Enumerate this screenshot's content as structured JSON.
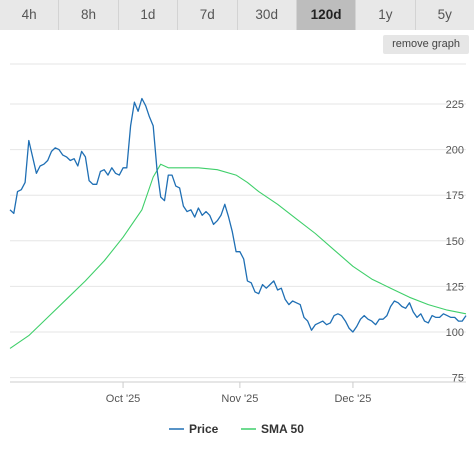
{
  "range_tabs": [
    {
      "label": "4h",
      "active": false
    },
    {
      "label": "8h",
      "active": false
    },
    {
      "label": "1d",
      "active": false
    },
    {
      "label": "7d",
      "active": false
    },
    {
      "label": "30d",
      "active": false
    },
    {
      "label": "120d",
      "active": true
    },
    {
      "label": "1y",
      "active": false
    },
    {
      "label": "5y",
      "active": false
    }
  ],
  "remove_graph_label": "remove graph",
  "chart_data": {
    "type": "line",
    "x_start": "2025-09-01",
    "x_end": "2025-12-31",
    "x_ticks": [
      {
        "label": "Oct '25",
        "date": "2025-10-01"
      },
      {
        "label": "Nov '25",
        "date": "2025-11-01"
      },
      {
        "label": "Dec '25",
        "date": "2025-12-01"
      }
    ],
    "y_ticks": [
      75,
      100,
      125,
      150,
      175,
      200,
      225
    ],
    "ylim": [
      70,
      245
    ],
    "y_axis_side": "right",
    "grid": true,
    "legend_position": "bottom-center",
    "series": [
      {
        "name": "Price",
        "color": "#1f6fb4",
        "points": [
          [
            "2025-09-01",
            167
          ],
          [
            "2025-09-02",
            165
          ],
          [
            "2025-09-03",
            177
          ],
          [
            "2025-09-04",
            178
          ],
          [
            "2025-09-05",
            182
          ],
          [
            "2025-09-06",
            205
          ],
          [
            "2025-09-07",
            196
          ],
          [
            "2025-09-08",
            187
          ],
          [
            "2025-09-09",
            191
          ],
          [
            "2025-09-10",
            192
          ],
          [
            "2025-09-11",
            194
          ],
          [
            "2025-09-12",
            199
          ],
          [
            "2025-09-13",
            201
          ],
          [
            "2025-09-14",
            200
          ],
          [
            "2025-09-15",
            197
          ],
          [
            "2025-09-16",
            196
          ],
          [
            "2025-09-17",
            194
          ],
          [
            "2025-09-18",
            195
          ],
          [
            "2025-09-19",
            191
          ],
          [
            "2025-09-20",
            199
          ],
          [
            "2025-09-21",
            196
          ],
          [
            "2025-09-22",
            183
          ],
          [
            "2025-09-23",
            181
          ],
          [
            "2025-09-24",
            181
          ],
          [
            "2025-09-25",
            188
          ],
          [
            "2025-09-26",
            189
          ],
          [
            "2025-09-27",
            186
          ],
          [
            "2025-09-28",
            190
          ],
          [
            "2025-09-29",
            187
          ],
          [
            "2025-09-30",
            186
          ],
          [
            "2025-10-01",
            190
          ],
          [
            "2025-10-02",
            190
          ],
          [
            "2025-10-03",
            213
          ],
          [
            "2025-10-04",
            226
          ],
          [
            "2025-10-05",
            221
          ],
          [
            "2025-10-06",
            228
          ],
          [
            "2025-10-07",
            224
          ],
          [
            "2025-10-08",
            218
          ],
          [
            "2025-10-09",
            213
          ],
          [
            "2025-10-10",
            189
          ],
          [
            "2025-10-11",
            174
          ],
          [
            "2025-10-12",
            172
          ],
          [
            "2025-10-13",
            186
          ],
          [
            "2025-10-14",
            186
          ],
          [
            "2025-10-15",
            180
          ],
          [
            "2025-10-16",
            179
          ],
          [
            "2025-10-17",
            169
          ],
          [
            "2025-10-18",
            166
          ],
          [
            "2025-10-19",
            167
          ],
          [
            "2025-10-20",
            163
          ],
          [
            "2025-10-21",
            168
          ],
          [
            "2025-10-22",
            164
          ],
          [
            "2025-10-23",
            166
          ],
          [
            "2025-10-24",
            164
          ],
          [
            "2025-10-25",
            159
          ],
          [
            "2025-10-26",
            161
          ],
          [
            "2025-10-27",
            164
          ],
          [
            "2025-10-28",
            170
          ],
          [
            "2025-10-29",
            163
          ],
          [
            "2025-10-30",
            155
          ],
          [
            "2025-10-31",
            144
          ],
          [
            "2025-11-01",
            144
          ],
          [
            "2025-11-02",
            140
          ],
          [
            "2025-11-03",
            128
          ],
          [
            "2025-11-04",
            127
          ],
          [
            "2025-11-05",
            122
          ],
          [
            "2025-11-06",
            121
          ],
          [
            "2025-11-07",
            126
          ],
          [
            "2025-11-08",
            124
          ],
          [
            "2025-11-09",
            126
          ],
          [
            "2025-11-10",
            128
          ],
          [
            "2025-11-11",
            123
          ],
          [
            "2025-11-12",
            124
          ],
          [
            "2025-11-13",
            118
          ],
          [
            "2025-11-14",
            115
          ],
          [
            "2025-11-15",
            117
          ],
          [
            "2025-11-16",
            116
          ],
          [
            "2025-11-17",
            115
          ],
          [
            "2025-11-18",
            108
          ],
          [
            "2025-11-19",
            106
          ],
          [
            "2025-11-20",
            101
          ],
          [
            "2025-11-21",
            104
          ],
          [
            "2025-11-22",
            105
          ],
          [
            "2025-11-23",
            106
          ],
          [
            "2025-11-24",
            104
          ],
          [
            "2025-11-25",
            105
          ],
          [
            "2025-11-26",
            109
          ],
          [
            "2025-11-27",
            110
          ],
          [
            "2025-11-28",
            109
          ],
          [
            "2025-11-29",
            106
          ],
          [
            "2025-11-30",
            102
          ],
          [
            "2025-12-01",
            100
          ],
          [
            "2025-12-02",
            103
          ],
          [
            "2025-12-03",
            107
          ],
          [
            "2025-12-04",
            109
          ],
          [
            "2025-12-05",
            107
          ],
          [
            "2025-12-06",
            106
          ],
          [
            "2025-12-07",
            104
          ],
          [
            "2025-12-08",
            107
          ],
          [
            "2025-12-09",
            107
          ],
          [
            "2025-12-10",
            109
          ],
          [
            "2025-12-11",
            114
          ],
          [
            "2025-12-12",
            117
          ],
          [
            "2025-12-13",
            116
          ],
          [
            "2025-12-14",
            114
          ],
          [
            "2025-12-15",
            113
          ],
          [
            "2025-12-16",
            116
          ],
          [
            "2025-12-17",
            111
          ],
          [
            "2025-12-18",
            108
          ],
          [
            "2025-12-19",
            110
          ],
          [
            "2025-12-20",
            106
          ],
          [
            "2025-12-21",
            105
          ],
          [
            "2025-12-22",
            109
          ],
          [
            "2025-12-23",
            108
          ],
          [
            "2025-12-24",
            108
          ],
          [
            "2025-12-25",
            110
          ],
          [
            "2025-12-26",
            109
          ],
          [
            "2025-12-27",
            108
          ],
          [
            "2025-12-28",
            108
          ],
          [
            "2025-12-29",
            106
          ],
          [
            "2025-12-30",
            106
          ],
          [
            "2025-12-31",
            109
          ]
        ]
      },
      {
        "name": "SMA 50",
        "color": "#3fcf6a",
        "points": [
          [
            "2025-09-01",
            91
          ],
          [
            "2025-09-06",
            98
          ],
          [
            "2025-09-11",
            108
          ],
          [
            "2025-09-16",
            118
          ],
          [
            "2025-09-21",
            128
          ],
          [
            "2025-09-26",
            139
          ],
          [
            "2025-10-01",
            152
          ],
          [
            "2025-10-06",
            167
          ],
          [
            "2025-10-09",
            185
          ],
          [
            "2025-10-11",
            192
          ],
          [
            "2025-10-13",
            190
          ],
          [
            "2025-10-16",
            190
          ],
          [
            "2025-10-21",
            190
          ],
          [
            "2025-10-26",
            189
          ],
          [
            "2025-10-31",
            186
          ],
          [
            "2025-11-03",
            182
          ],
          [
            "2025-11-06",
            177
          ],
          [
            "2025-11-11",
            170
          ],
          [
            "2025-11-16",
            162
          ],
          [
            "2025-11-21",
            154
          ],
          [
            "2025-11-26",
            145
          ],
          [
            "2025-12-01",
            136
          ],
          [
            "2025-12-06",
            129
          ],
          [
            "2025-12-11",
            124
          ],
          [
            "2025-12-16",
            119
          ],
          [
            "2025-12-21",
            115
          ],
          [
            "2025-12-26",
            112
          ],
          [
            "2025-12-31",
            110
          ]
        ]
      }
    ]
  }
}
